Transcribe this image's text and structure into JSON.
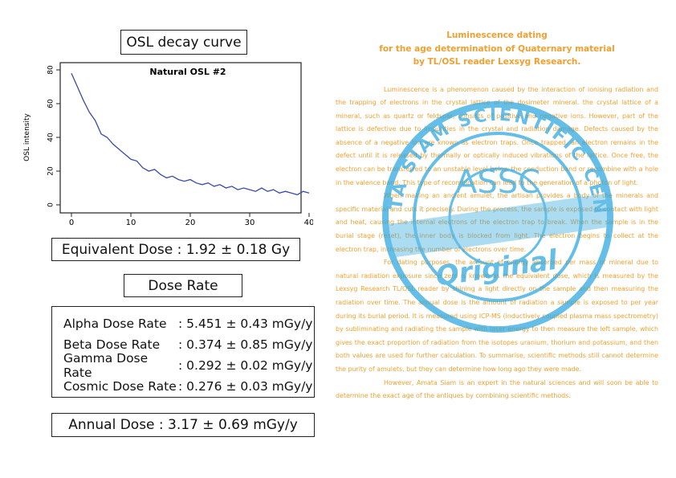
{
  "left": {
    "osl_title": "OSL decay curve",
    "chart_data": {
      "type": "line",
      "title": "Natural OSL #2",
      "y_label": "OSL intensity",
      "color": "#3a4aa8",
      "x": [
        0,
        1,
        2,
        3,
        4,
        5,
        6,
        7,
        8,
        9,
        10,
        11,
        12,
        13,
        14,
        15,
        16,
        17,
        18,
        19,
        20,
        21,
        22,
        23,
        24,
        25,
        26,
        27,
        28,
        29,
        30,
        31,
        32,
        33,
        34,
        35,
        36,
        37,
        38,
        39,
        40
      ],
      "values": [
        78,
        70,
        62,
        55,
        50,
        42,
        40,
        36,
        33,
        30,
        27,
        26,
        22,
        20,
        21,
        18,
        16,
        17,
        15,
        14,
        15,
        13,
        12,
        13,
        11,
        12,
        10,
        11,
        9,
        10,
        9,
        8,
        10,
        8,
        9,
        7,
        8,
        7,
        6,
        8,
        7
      ],
      "xlim": [
        0,
        40
      ],
      "ylim": [
        0,
        80
      ],
      "xticks": [
        0,
        10,
        20,
        30,
        40
      ],
      "yticks": [
        0,
        20,
        40,
        60,
        80
      ]
    },
    "equivalent_dose": "Equivalent Dose : 1.92 ± 0.18 Gy",
    "dose_rate_title": "Dose Rate",
    "rates": [
      {
        "label": "Alpha Dose Rate",
        "value": ": 5.451 ± 0.43 mGy/y"
      },
      {
        "label": "Beta Dose Rate",
        "value": ": 0.374 ± 0.85 mGy/y"
      },
      {
        "label": "Gamma Dose Rate",
        "value": ": 0.292 ± 0.02 mGy/y"
      },
      {
        "label": "Cosmic Dose Rate",
        "value": ": 0.276 ± 0.03 mGy/y"
      }
    ],
    "annual_dose": "Annual Dose : 3.17 ± 0.69 mGy/y"
  },
  "article": {
    "title": [
      "Luminescence dating",
      "for the age determination of Quaternary material",
      "by TL/OSL reader Lexsyg Research."
    ],
    "paragraphs": [
      "Luminescence is a phenomenon caused by the interaction of ionising radiation and the trapping of electrons in the crystal lattice of the dosimeter mineral. the crystal lattice of a mineral, such as quartz or feldspar, consists of positive and negative ions. However, part of the lattice is defective due to impurities in the crystal and radiation damage. Defects caused by the absence of a negative ion are known as electron traps. Once trapped, an electron remains in the defect until it is released by thermally or optically induced vibrations of the lattice. Once free, the electron can be transferred to an unstable level below the conduction band or recombine with a hole in the valence band. This type of recombination can lead to the generation of a photon of light.",
      "When making an ancient amulet, the artisan provides a body of the minerals and specific material and cuts it precisely. During the process, the sample is exposed to contact with light and heat, causing the internal electrons of the electron trap to break. When the sample is in the burial stage (reset), the inner body is blocked from light. The electron begins to collect at the electron trap, increasing the number of electrons over time.",
      "For dating purposes, the amount of energy absorbed per mass of mineral due to natural radiation exposure since zero is known as the equivalent dose, which is measured by the Lexsyg Research TL/OSL reader by shining a light directly on the sample and then measuring the radiation over time. The annual dose is the amount of radiation a sample is exposed to per year during its burial period. It is measured using ICP-MS (inductively coupled plasma mass spectrometry) by subliminating and radiating the sample with laser energy to then measure the left sample, which gives the exact proportion of radiation from the isotopes uranium, thorium and potassium, and then both values are used for further calculation. To summarise, scientific methods still cannot determine the purity of amulets, but they can determine how long ago they were made.",
      "However, Amata Siam is an expert in the natural sciences and will soon be able to determine the exact age of the antiques by combining scientific methods."
    ]
  },
  "stamp": {
    "ring_text": "AMATA SIAM SCIENTIFIC CENTER",
    "center_text": "ASSC",
    "script_text": "Original"
  }
}
